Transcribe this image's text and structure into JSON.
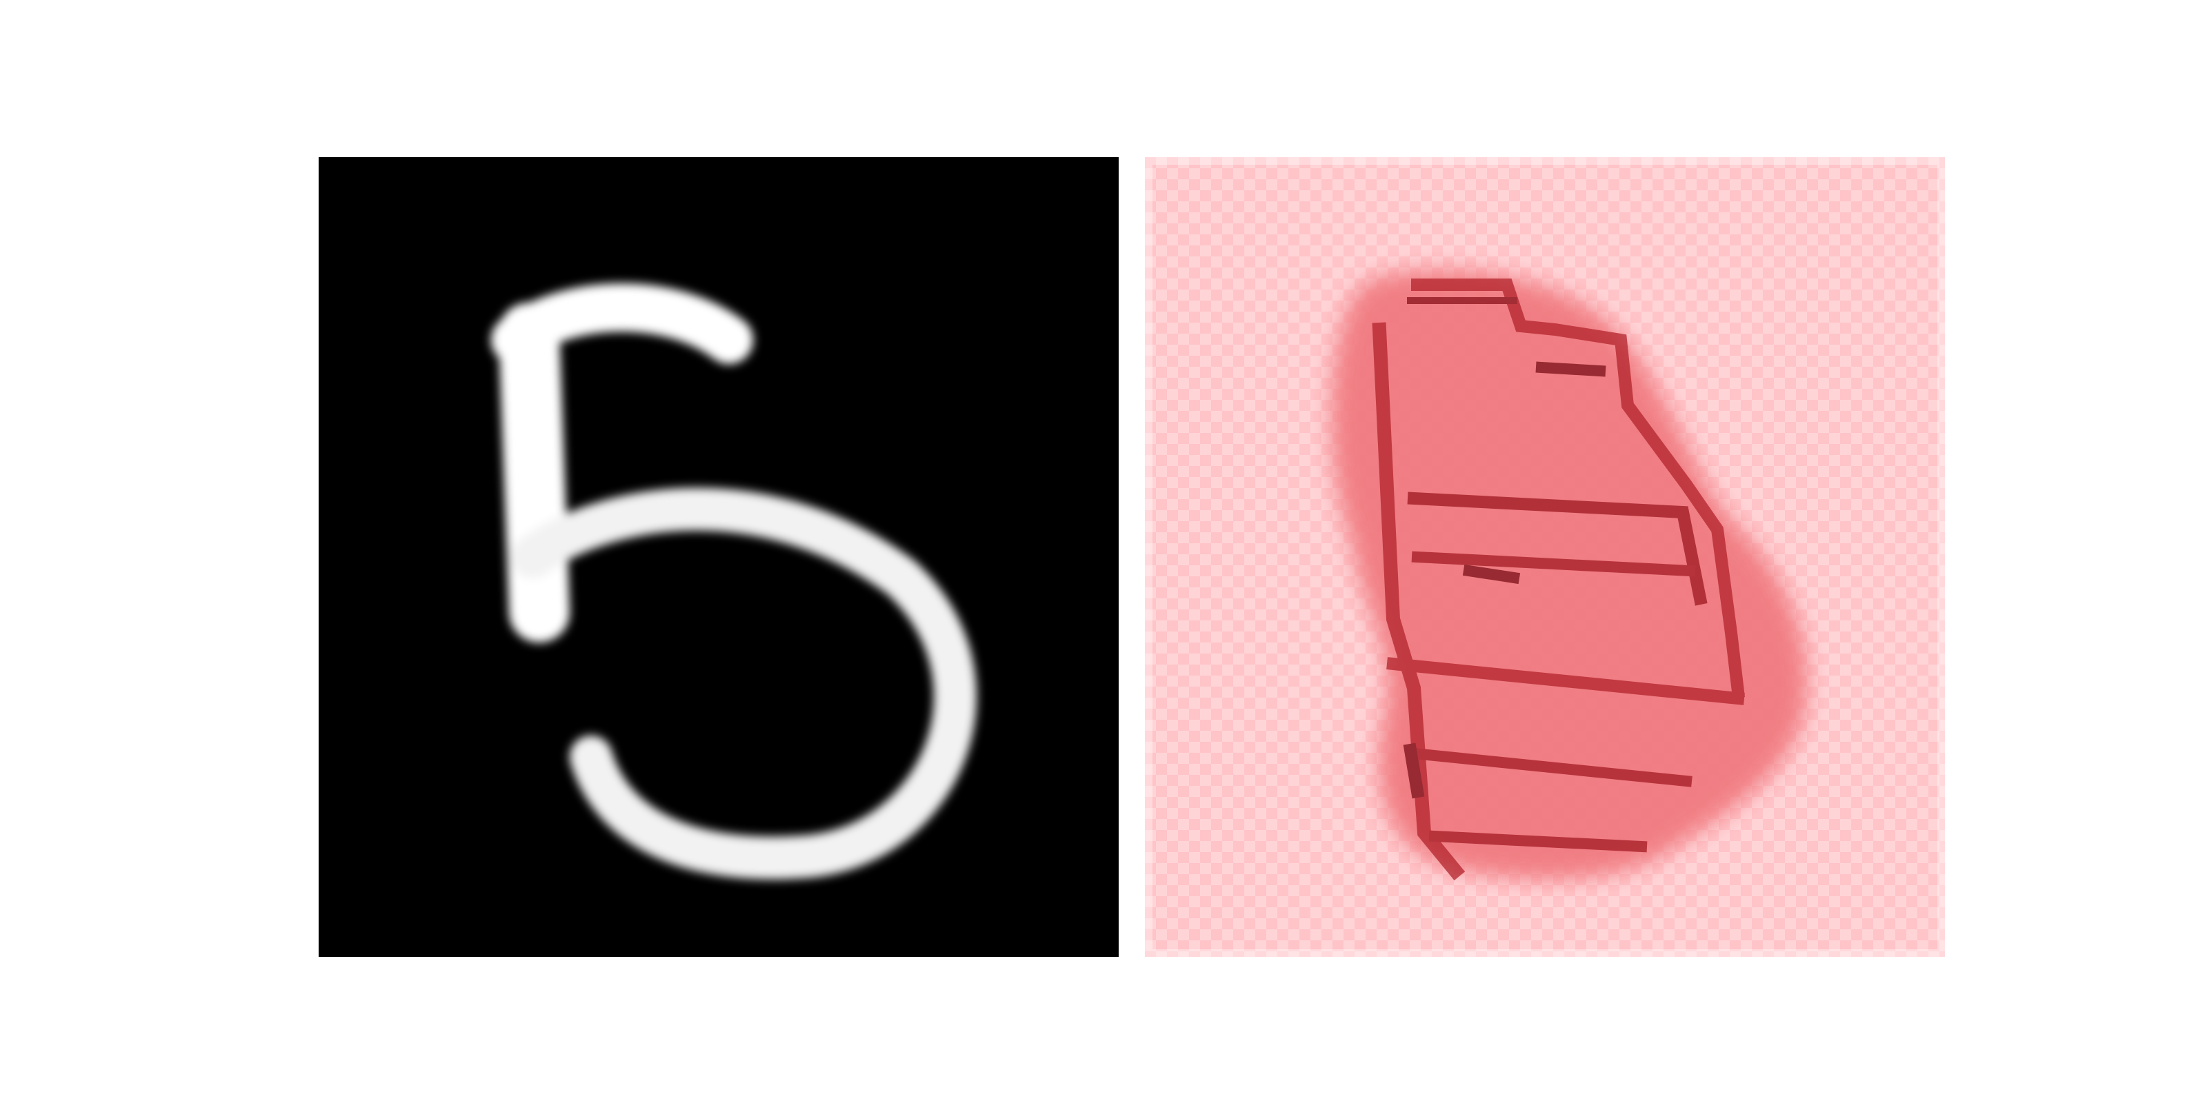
{
  "figure": {
    "panels": [
      {
        "kind": "grayscale-digit-image",
        "depicted_digit": "5",
        "grid": "28x28",
        "colormap": "gray"
      },
      {
        "kind": "attribution-heatmap",
        "grid": "28x28",
        "colormap": "reds",
        "overlay_pattern": "checkerboard"
      }
    ]
  },
  "colors": {
    "digit_background": "#000000",
    "digit_stroke": "#ffffff",
    "heatmap_low": "#ffe3e5",
    "heatmap_mid": "#f07a80",
    "heatmap_high": "#7a0f17"
  }
}
